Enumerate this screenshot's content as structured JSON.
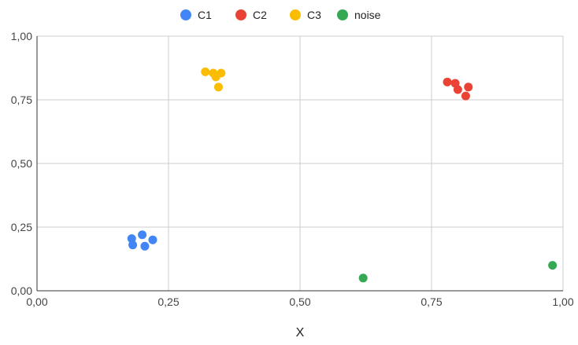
{
  "chart_data": {
    "type": "scatter",
    "title": "",
    "xlabel": "X",
    "ylabel": "",
    "xlim": [
      0,
      1
    ],
    "ylim": [
      0,
      1
    ],
    "x_ticks": [
      "0,00",
      "0,25",
      "0,50",
      "0,75",
      "1,00"
    ],
    "y_ticks": [
      "0,00",
      "0,25",
      "0,50",
      "0,75",
      "1,00"
    ],
    "grid": true,
    "legend_position": "top-center",
    "series": [
      {
        "name": "C1",
        "color": "#4285F4",
        "points": [
          {
            "x": 0.18,
            "y": 0.205
          },
          {
            "x": 0.182,
            "y": 0.18
          },
          {
            "x": 0.2,
            "y": 0.22
          },
          {
            "x": 0.205,
            "y": 0.175
          },
          {
            "x": 0.22,
            "y": 0.2
          }
        ]
      },
      {
        "name": "C2",
        "color": "#EA4335",
        "points": [
          {
            "x": 0.78,
            "y": 0.82
          },
          {
            "x": 0.795,
            "y": 0.815
          },
          {
            "x": 0.8,
            "y": 0.79
          },
          {
            "x": 0.815,
            "y": 0.765
          },
          {
            "x": 0.82,
            "y": 0.8
          }
        ]
      },
      {
        "name": "C3",
        "color": "#FBBC04",
        "points": [
          {
            "x": 0.32,
            "y": 0.86
          },
          {
            "x": 0.335,
            "y": 0.855
          },
          {
            "x": 0.34,
            "y": 0.84
          },
          {
            "x": 0.35,
            "y": 0.855
          },
          {
            "x": 0.345,
            "y": 0.8
          }
        ]
      },
      {
        "name": "noise",
        "color": "#34A853",
        "points": [
          {
            "x": 0.62,
            "y": 0.05
          },
          {
            "x": 0.98,
            "y": 0.1
          }
        ]
      }
    ]
  }
}
